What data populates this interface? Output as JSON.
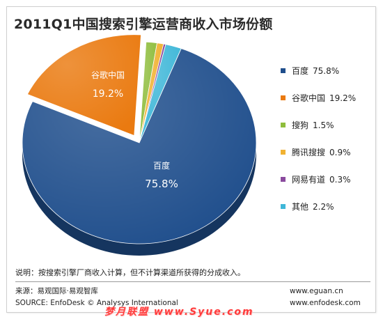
{
  "title": "2011Q1中国搜索引擎运营商收入市场份额",
  "chart_data": {
    "type": "pie",
    "title": "2011Q1中国搜索引擎运营商收入市场份额",
    "slices": [
      {
        "name": "百度",
        "value": 75.8,
        "label": "75.8%",
        "color": "#1f4e8c"
      },
      {
        "name": "谷歌中国",
        "value": 19.2,
        "label": "19.2%",
        "color": "#ea7a10"
      },
      {
        "name": "搜狗",
        "value": 1.5,
        "label": "1.5%",
        "color": "#8fbd3c"
      },
      {
        "name": "腾讯搜搜",
        "value": 0.9,
        "label": "0.9%",
        "color": "#f1b232"
      },
      {
        "name": "网易有道",
        "value": 0.3,
        "label": "0.3%",
        "color": "#8a4a9e"
      },
      {
        "name": "其他",
        "value": 2.2,
        "label": "2.2%",
        "color": "#3fb7d8"
      }
    ],
    "legend_position": "right",
    "style": "3d"
  },
  "note": "说明：按搜索引擎厂商收入计算，但不计算渠道所获得的分成收入。",
  "source_cn": "来源：易观国际·易观智库",
  "source_en": "SOURCE: EnfoDesk © Analysys International",
  "url1": "www.eguan.cn",
  "url2": "www.enfodesk.com",
  "watermark": "梦月联盟 www.Syue.com"
}
